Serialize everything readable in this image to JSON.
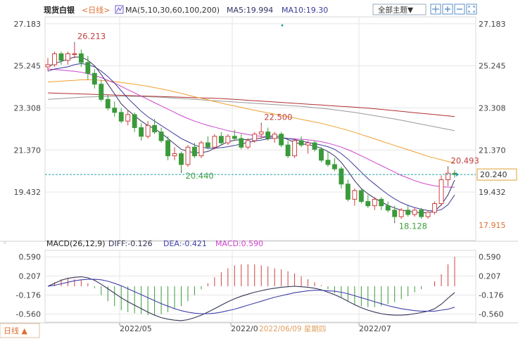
{
  "header": {
    "instrument": "现货白银",
    "period": "<日线>",
    "ma_label": "MA(5,10,30,60,100,200)",
    "ma5_label": "MA5:19.994",
    "ma10_label": "MA10:19.30",
    "theme_button": "全部主题▼",
    "tool_icons": [
      "crosshair-icon",
      "zoom-in-icon",
      "zoom-out-icon",
      "fullscreen-icon"
    ]
  },
  "footer": {
    "period_tab": "日线 ▲",
    "date_readout": "2022/06/09 星期四"
  },
  "macd_header": {
    "name": "MACD(26,12,9)",
    "diff": "DIFF:-0.126",
    "dea": "DEA:-0.421",
    "macd": "MACD:0.590"
  },
  "colors": {
    "up": "#d04040",
    "down": "#3a9a3a",
    "ma5": "#333366",
    "ma10": "#3b3b9a",
    "ma30": "#cc44cc",
    "ma60": "#f0a030",
    "ma100": "#999999",
    "ma200": "#b03030",
    "diff": "#333355",
    "dea": "#4040aa",
    "grid": "#e6e6e6",
    "axis_text": "#444444",
    "price_line": "#2aa0a8"
  },
  "chart_data": [
    {
      "type": "candlestick",
      "title": "",
      "ylim": [
        17.2,
        27.5
      ],
      "y_ticks_left": [
        "27.183",
        "25.245",
        "23.308",
        "21.370",
        "19.432"
      ],
      "y_ticks_right": [
        "27.183",
        "25.245",
        "23.308",
        "21.370",
        "19.432"
      ],
      "x_ticks": [
        "2022/05",
        "2022/0",
        "2022/07"
      ],
      "current_price": "20.240",
      "lowest_right_label": "17.915",
      "annotations": [
        {
          "label": "26.213",
          "value": 26.213,
          "kind": "high"
        },
        {
          "label": "22.500",
          "value": 22.5,
          "kind": "high"
        },
        {
          "label": "20.440",
          "value": 20.44,
          "kind": "low"
        },
        {
          "label": "18.128",
          "value": 18.128,
          "kind": "low"
        },
        {
          "label": "20.493",
          "value": 20.493,
          "kind": "high"
        }
      ],
      "candles": [
        [
          25.2,
          25.6,
          25.0,
          25.3
        ],
        [
          25.3,
          25.9,
          25.2,
          25.8
        ],
        [
          25.8,
          25.9,
          25.3,
          25.5
        ],
        [
          25.5,
          25.9,
          25.3,
          25.8
        ],
        [
          25.8,
          26.21,
          25.6,
          25.8
        ],
        [
          25.8,
          26.0,
          25.2,
          25.4
        ],
        [
          25.4,
          25.7,
          24.6,
          24.9
        ],
        [
          24.9,
          25.1,
          24.2,
          24.4
        ],
        [
          24.4,
          24.6,
          23.6,
          23.7
        ],
        [
          23.7,
          23.9,
          23.2,
          23.3
        ],
        [
          23.3,
          23.6,
          22.9,
          23.1
        ],
        [
          23.1,
          23.3,
          22.6,
          22.7
        ],
        [
          22.7,
          23.2,
          22.5,
          23.0
        ],
        [
          23.0,
          23.1,
          22.2,
          22.4
        ],
        [
          22.4,
          22.6,
          21.8,
          22.0
        ],
        [
          22.0,
          22.7,
          21.9,
          22.5
        ],
        [
          22.5,
          22.8,
          22.1,
          22.2
        ],
        [
          22.2,
          22.4,
          21.7,
          21.8
        ],
        [
          21.8,
          22.0,
          20.9,
          21.1
        ],
        [
          21.1,
          21.5,
          20.9,
          21.2
        ],
        [
          21.2,
          21.3,
          20.44,
          20.7
        ],
        [
          20.7,
          21.6,
          20.6,
          21.5
        ],
        [
          21.5,
          21.7,
          21.0,
          21.1
        ],
        [
          21.1,
          21.8,
          21.0,
          21.7
        ],
        [
          21.7,
          22.0,
          21.4,
          21.5
        ],
        [
          21.5,
          22.1,
          21.4,
          22.0
        ],
        [
          22.0,
          22.2,
          21.6,
          21.7
        ],
        [
          21.7,
          22.1,
          21.6,
          22.0
        ],
        [
          22.0,
          22.3,
          21.8,
          21.9
        ],
        [
          21.9,
          22.1,
          21.4,
          21.5
        ],
        [
          21.5,
          21.9,
          21.4,
          21.8
        ],
        [
          21.8,
          22.2,
          21.7,
          22.1
        ],
        [
          22.1,
          22.5,
          21.9,
          22.2
        ],
        [
          22.2,
          22.4,
          21.8,
          21.9
        ],
        [
          21.9,
          22.2,
          21.7,
          22.1
        ],
        [
          22.1,
          22.2,
          21.5,
          21.6
        ],
        [
          21.6,
          21.8,
          21.0,
          21.1
        ],
        [
          21.1,
          21.9,
          21.0,
          21.8
        ],
        [
          21.8,
          22.0,
          21.5,
          21.6
        ],
        [
          21.6,
          21.8,
          21.2,
          21.7
        ],
        [
          21.7,
          21.8,
          21.3,
          21.4
        ],
        [
          21.4,
          21.5,
          20.8,
          20.9
        ],
        [
          20.9,
          21.3,
          20.6,
          20.7
        ],
        [
          20.7,
          21.0,
          20.4,
          20.5
        ],
        [
          20.5,
          20.6,
          19.6,
          19.8
        ],
        [
          19.8,
          20.0,
          19.0,
          19.1
        ],
        [
          19.1,
          19.6,
          18.8,
          19.5
        ],
        [
          19.5,
          19.6,
          18.9,
          19.0
        ],
        [
          19.0,
          19.3,
          18.7,
          18.8
        ],
        [
          18.8,
          19.2,
          18.6,
          19.1
        ],
        [
          19.1,
          19.2,
          18.6,
          18.8
        ],
        [
          18.8,
          19.0,
          18.5,
          18.6
        ],
        [
          18.6,
          18.8,
          18.13,
          18.3
        ],
        [
          18.3,
          18.7,
          18.2,
          18.6
        ],
        [
          18.6,
          18.8,
          18.3,
          18.4
        ],
        [
          18.4,
          18.7,
          18.3,
          18.6
        ],
        [
          18.6,
          18.7,
          18.2,
          18.3
        ],
        [
          18.3,
          18.6,
          18.2,
          18.5
        ],
        [
          18.5,
          19.0,
          18.4,
          18.9
        ],
        [
          18.9,
          20.2,
          18.8,
          20.0
        ],
        [
          20.0,
          20.49,
          19.7,
          20.3
        ],
        [
          20.3,
          20.45,
          20.1,
          20.24
        ]
      ],
      "moving_averages": [
        {
          "name": "MA5",
          "values": [
            25.2,
            25.35,
            25.45,
            25.55,
            25.65,
            25.65,
            25.5,
            25.25,
            24.85,
            24.4,
            23.95,
            23.5,
            23.2,
            22.95,
            22.7,
            22.5,
            22.35,
            22.15,
            21.9,
            21.65,
            21.4,
            21.3,
            21.25,
            21.25,
            21.3,
            21.45,
            21.6,
            21.75,
            21.82,
            21.85,
            21.85,
            21.88,
            21.92,
            22.0,
            22.02,
            21.98,
            21.85,
            21.72,
            21.65,
            21.62,
            21.55,
            21.45,
            21.3,
            21.1,
            20.8,
            20.4,
            19.95,
            19.6,
            19.35,
            19.15,
            18.98,
            18.82,
            18.7,
            18.6,
            18.55,
            18.5,
            18.48,
            18.48,
            18.55,
            18.85,
            19.3,
            19.99
          ]
        },
        {
          "name": "MA10",
          "values": [
            25.0,
            25.1,
            25.15,
            25.2,
            25.3,
            25.35,
            25.3,
            25.2,
            25.0,
            24.75,
            24.45,
            24.1,
            23.75,
            23.45,
            23.15,
            22.9,
            22.7,
            22.5,
            22.3,
            22.1,
            21.9,
            21.75,
            21.6,
            21.5,
            21.45,
            21.45,
            21.48,
            21.52,
            21.58,
            21.65,
            21.72,
            21.78,
            21.83,
            21.88,
            21.92,
            21.93,
            21.9,
            21.85,
            21.78,
            21.72,
            21.66,
            21.6,
            21.52,
            21.4,
            21.2,
            20.95,
            20.65,
            20.35,
            20.05,
            19.8,
            19.55,
            19.32,
            19.12,
            18.95,
            18.82,
            18.72,
            18.64,
            18.58,
            18.56,
            18.62,
            18.85,
            19.3
          ]
        },
        {
          "name": "MA30",
          "values": [
            25.1,
            25.08,
            25.05,
            25.02,
            25.0,
            24.95,
            24.88,
            24.8,
            24.7,
            24.58,
            24.45,
            24.3,
            24.15,
            24.0,
            23.85,
            23.7,
            23.55,
            23.4,
            23.25,
            23.1,
            22.95,
            22.82,
            22.7,
            22.6,
            22.5,
            22.42,
            22.34,
            22.26,
            22.2,
            22.14,
            22.08,
            22.03,
            22.0,
            21.97,
            21.94,
            21.92,
            21.9,
            21.88,
            21.86,
            21.84,
            21.8,
            21.75,
            21.68,
            21.6,
            21.5,
            21.38,
            21.25,
            21.1,
            20.95,
            20.8,
            20.65,
            20.5,
            20.35,
            20.2,
            20.08,
            19.96,
            19.86,
            19.78,
            19.72,
            19.68,
            19.66,
            19.66
          ]
        },
        {
          "name": "MA60",
          "values": [
            24.5,
            24.52,
            24.54,
            24.56,
            24.58,
            24.6,
            24.6,
            24.6,
            24.58,
            24.55,
            24.52,
            24.48,
            24.44,
            24.4,
            24.35,
            24.3,
            24.24,
            24.18,
            24.12,
            24.05,
            23.98,
            23.9,
            23.82,
            23.75,
            23.68,
            23.6,
            23.53,
            23.46,
            23.4,
            23.33,
            23.26,
            23.2,
            23.14,
            23.08,
            23.02,
            22.96,
            22.9,
            22.84,
            22.78,
            22.72,
            22.66,
            22.6,
            22.52,
            22.44,
            22.36,
            22.28,
            22.18,
            22.08,
            21.98,
            21.88,
            21.78,
            21.68,
            21.58,
            21.48,
            21.38,
            21.28,
            21.18,
            21.08,
            21.0,
            20.92,
            20.84,
            20.78
          ]
        },
        {
          "name": "MA100",
          "values": [
            23.7,
            23.72,
            23.74,
            23.76,
            23.78,
            23.8,
            23.81,
            23.82,
            23.83,
            23.84,
            23.84,
            23.84,
            23.84,
            23.84,
            23.83,
            23.82,
            23.81,
            23.8,
            23.78,
            23.76,
            23.74,
            23.72,
            23.7,
            23.68,
            23.66,
            23.64,
            23.62,
            23.6,
            23.58,
            23.56,
            23.54,
            23.52,
            23.5,
            23.48,
            23.46,
            23.44,
            23.42,
            23.4,
            23.38,
            23.35,
            23.32,
            23.29,
            23.26,
            23.22,
            23.18,
            23.14,
            23.1,
            23.05,
            23.0,
            22.95,
            22.9,
            22.85,
            22.8,
            22.74,
            22.68,
            22.62,
            22.56,
            22.5,
            22.44,
            22.38,
            22.32,
            22.26
          ]
        },
        {
          "name": "MA200",
          "values": [
            24.0,
            23.99,
            23.98,
            23.97,
            23.96,
            23.95,
            23.94,
            23.93,
            23.92,
            23.91,
            23.9,
            23.89,
            23.88,
            23.87,
            23.86,
            23.85,
            23.84,
            23.83,
            23.82,
            23.81,
            23.8,
            23.79,
            23.78,
            23.77,
            23.76,
            23.75,
            23.74,
            23.72,
            23.7,
            23.68,
            23.66,
            23.64,
            23.62,
            23.6,
            23.58,
            23.56,
            23.54,
            23.52,
            23.5,
            23.48,
            23.46,
            23.44,
            23.42,
            23.4,
            23.38,
            23.36,
            23.34,
            23.32,
            23.3,
            23.27,
            23.24,
            23.21,
            23.18,
            23.15,
            23.12,
            23.09,
            23.06,
            23.03,
            23.0,
            22.97,
            22.94,
            22.91
          ]
        }
      ]
    },
    {
      "type": "macd",
      "title": "",
      "ylim": [
        -0.72,
        0.72
      ],
      "y_ticks_left": [
        "0.590",
        "0.207",
        "-0.176",
        "-0.560"
      ],
      "y_ticks_right": [
        "0.590",
        "0.207",
        "-0.176",
        "-0.560"
      ],
      "diff": [
        0.0,
        0.06,
        0.12,
        0.16,
        0.18,
        0.19,
        0.17,
        0.12,
        0.04,
        -0.05,
        -0.14,
        -0.23,
        -0.31,
        -0.38,
        -0.45,
        -0.52,
        -0.58,
        -0.63,
        -0.66,
        -0.68,
        -0.69,
        -0.67,
        -0.63,
        -0.58,
        -0.52,
        -0.45,
        -0.38,
        -0.31,
        -0.25,
        -0.2,
        -0.16,
        -0.12,
        -0.09,
        -0.06,
        -0.04,
        -0.02,
        -0.01,
        0.0,
        -0.01,
        -0.02,
        -0.04,
        -0.07,
        -0.12,
        -0.17,
        -0.23,
        -0.3,
        -0.37,
        -0.43,
        -0.48,
        -0.52,
        -0.55,
        -0.57,
        -0.58,
        -0.58,
        -0.57,
        -0.55,
        -0.53,
        -0.5,
        -0.45,
        -0.36,
        -0.24,
        -0.126
      ],
      "dea": [
        0.0,
        0.02,
        0.05,
        0.08,
        0.11,
        0.13,
        0.14,
        0.14,
        0.13,
        0.1,
        0.06,
        0.01,
        -0.05,
        -0.11,
        -0.17,
        -0.23,
        -0.29,
        -0.35,
        -0.4,
        -0.45,
        -0.49,
        -0.52,
        -0.54,
        -0.55,
        -0.55,
        -0.54,
        -0.52,
        -0.49,
        -0.46,
        -0.42,
        -0.38,
        -0.34,
        -0.3,
        -0.26,
        -0.22,
        -0.19,
        -0.16,
        -0.13,
        -0.11,
        -0.09,
        -0.08,
        -0.08,
        -0.09,
        -0.1,
        -0.12,
        -0.15,
        -0.19,
        -0.23,
        -0.27,
        -0.31,
        -0.35,
        -0.39,
        -0.42,
        -0.45,
        -0.47,
        -0.49,
        -0.5,
        -0.5,
        -0.5,
        -0.48,
        -0.46,
        -0.421
      ],
      "histogram": [
        0.0,
        0.08,
        0.14,
        0.16,
        0.14,
        0.12,
        0.06,
        -0.04,
        -0.18,
        -0.3,
        -0.4,
        -0.48,
        -0.52,
        -0.54,
        -0.56,
        -0.58,
        -0.58,
        -0.56,
        -0.52,
        -0.46,
        -0.4,
        -0.3,
        -0.18,
        -0.06,
        0.06,
        0.18,
        0.28,
        0.36,
        0.42,
        0.44,
        0.44,
        0.44,
        0.42,
        0.4,
        0.36,
        0.34,
        0.3,
        0.26,
        0.2,
        0.14,
        0.08,
        0.02,
        -0.06,
        -0.14,
        -0.22,
        -0.3,
        -0.36,
        -0.4,
        -0.42,
        -0.42,
        -0.4,
        -0.36,
        -0.32,
        -0.26,
        -0.2,
        -0.12,
        -0.06,
        0.0,
        0.1,
        0.24,
        0.44,
        0.59
      ]
    }
  ]
}
